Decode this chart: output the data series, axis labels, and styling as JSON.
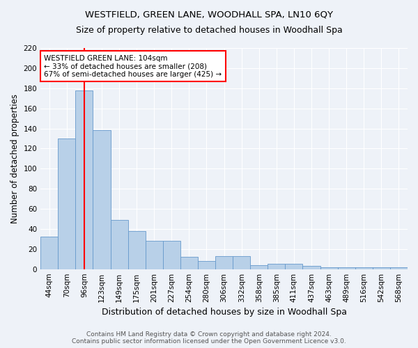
{
  "title": "WESTFIELD, GREEN LANE, WOODHALL SPA, LN10 6QY",
  "subtitle": "Size of property relative to detached houses in Woodhall Spa",
  "xlabel": "Distribution of detached houses by size in Woodhall Spa",
  "ylabel": "Number of detached properties",
  "categories": [
    "44sqm",
    "70sqm",
    "96sqm",
    "123sqm",
    "149sqm",
    "175sqm",
    "201sqm",
    "227sqm",
    "254sqm",
    "280sqm",
    "306sqm",
    "332sqm",
    "358sqm",
    "385sqm",
    "411sqm",
    "437sqm",
    "463sqm",
    "489sqm",
    "516sqm",
    "542sqm",
    "568sqm"
  ],
  "values": [
    32,
    130,
    178,
    138,
    49,
    38,
    28,
    28,
    12,
    8,
    13,
    13,
    4,
    5,
    5,
    3,
    2,
    2,
    2,
    2,
    2
  ],
  "bar_color": "#b8d0e8",
  "bar_edge_color": "#6699cc",
  "red_line_index": 2,
  "annotation_text": "WESTFIELD GREEN LANE: 104sqm\n← 33% of detached houses are smaller (208)\n67% of semi-detached houses are larger (425) →",
  "annotation_box_color": "white",
  "annotation_box_edge_color": "red",
  "ylim": [
    0,
    220
  ],
  "yticks": [
    0,
    20,
    40,
    60,
    80,
    100,
    120,
    140,
    160,
    180,
    200,
    220
  ],
  "footer_text": "Contains HM Land Registry data © Crown copyright and database right 2024.\nContains public sector information licensed under the Open Government Licence v3.0.",
  "background_color": "#eef2f8",
  "grid_color": "#ffffff",
  "title_fontsize": 9.5,
  "subtitle_fontsize": 9,
  "xlabel_fontsize": 9,
  "ylabel_fontsize": 8.5,
  "tick_fontsize": 7.5,
  "footer_fontsize": 6.5
}
